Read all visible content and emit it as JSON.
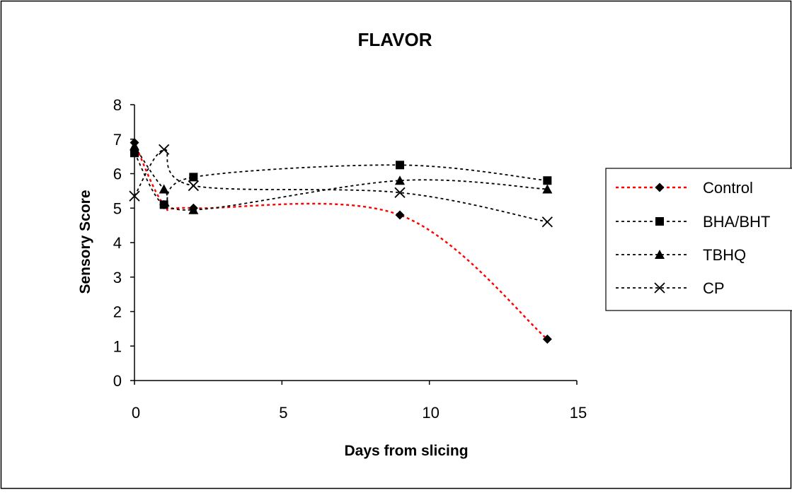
{
  "chart_data": {
    "type": "line",
    "title": "FLAVOR",
    "xlabel": "Days from slicing",
    "ylabel": "Sensory Score",
    "xlim": [
      0,
      15
    ],
    "ylim": [
      0,
      8
    ],
    "xticks": [
      0,
      5,
      10,
      15
    ],
    "yticks": [
      0,
      1,
      2,
      3,
      4,
      5,
      6,
      7,
      8
    ],
    "grid": false,
    "legend_position": "right",
    "line_style": "dotted smoothed",
    "series": [
      {
        "name": "Control",
        "marker": "diamond",
        "color": "#ff0000",
        "marker_color": "#000000",
        "x": [
          0,
          1,
          2,
          9,
          14
        ],
        "y": [
          6.9,
          5.1,
          5.0,
          4.8,
          1.2
        ]
      },
      {
        "name": "BHA/BHT",
        "marker": "square",
        "color": "#000000",
        "marker_color": "#000000",
        "x": [
          0,
          1,
          2,
          9,
          14
        ],
        "y": [
          6.6,
          5.1,
          5.9,
          6.25,
          5.8
        ]
      },
      {
        "name": "TBHQ",
        "marker": "triangle",
        "color": "#000000",
        "marker_color": "#000000",
        "x": [
          0,
          1,
          2,
          9,
          14
        ],
        "y": [
          6.8,
          5.55,
          4.95,
          5.8,
          5.55
        ]
      },
      {
        "name": "CP",
        "marker": "x",
        "color": "#000000",
        "marker_color": "#000000",
        "x": [
          0,
          1,
          2,
          9,
          14
        ],
        "y": [
          5.35,
          6.7,
          5.65,
          5.45,
          4.6
        ]
      }
    ]
  }
}
